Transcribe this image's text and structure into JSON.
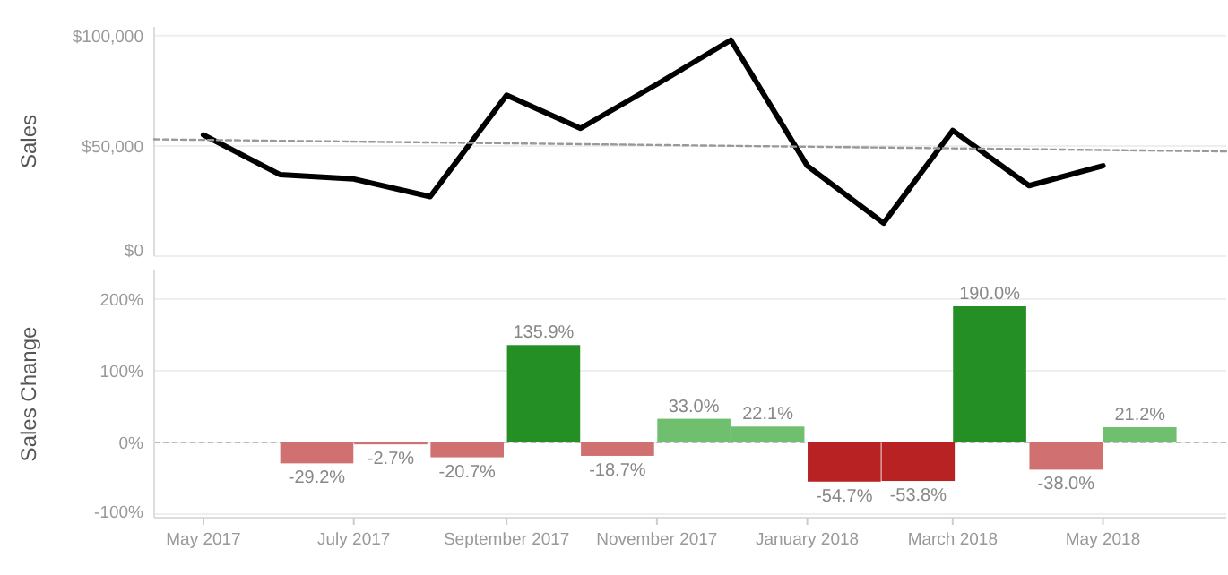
{
  "chart_data": [
    {
      "type": "line",
      "ylabel": "Sales",
      "x": [
        "2017-05-01",
        "2017-06-01",
        "2017-07-01",
        "2017-08-01",
        "2017-09-01",
        "2017-10-01",
        "2017-11-01",
        "2017-12-01",
        "2018-01-01",
        "2018-02-01",
        "2018-03-01",
        "2018-04-01",
        "2018-05-01"
      ],
      "series": [
        {
          "color": "#000000",
          "values": [
            55000,
            37000,
            35000,
            27000,
            73000,
            58000,
            78000,
            98000,
            41000,
            15000,
            57000,
            32000,
            41000
          ]
        },
        {
          "type": "line",
          "x": [
            "2017-04-11",
            "2018-06-20"
          ],
          "values": [
            53000,
            47500
          ],
          "color": "#999999",
          "line_style": "dashed"
        }
      ],
      "xlim": [
        "2017-04-11",
        "2018-06-20"
      ],
      "ylim": [
        0,
        104000
      ],
      "yticks": [
        {
          "value": 0,
          "label": "$0"
        },
        {
          "value": 50000,
          "label": "$50,000"
        },
        {
          "value": 100000,
          "label": "$100,000"
        }
      ],
      "grid": "y",
      "tick_labels": "y"
    },
    {
      "type": "bar",
      "ylabel": "Sales Change",
      "x": [
        "2017-06-16",
        "2017-07-16",
        "2017-08-16",
        "2017-09-16",
        "2017-10-16",
        "2017-11-16",
        "2017-12-16",
        "2018-01-16",
        "2018-02-15",
        "2018-03-16",
        "2018-04-16",
        "2018-05-16"
      ],
      "values": [
        -29.2,
        -2.7,
        -20.7,
        135.9,
        -18.7,
        33.0,
        22.1,
        -54.7,
        -53.8,
        190.0,
        -38.0,
        21.2
      ],
      "colors": [
        "#d07070",
        "#d07070",
        "#d07070",
        "#248f24",
        "#d07070",
        "#6fbf6f",
        "#6fbf6f",
        "#b82222",
        "#b82222",
        "#248f24",
        "#d07070",
        "#6fbf6f"
      ],
      "value_labels": [
        "-29.2%",
        "-2.7%",
        "-20.7%",
        "135.9%",
        "-18.7%",
        "33.0%",
        "22.1%",
        "-54.7%",
        "-53.8%",
        "190.0%",
        "-38.0%",
        "21.2%"
      ],
      "ref_lines": [
        {
          "axis": "y",
          "value": 0,
          "color": "#bbbbbb",
          "line_style": "dashed"
        }
      ],
      "xlim": [
        "2017-04-11",
        "2018-06-20"
      ],
      "ylim": [
        -105,
        240
      ],
      "yticks": [
        {
          "value": -100,
          "label": "-100%"
        },
        {
          "value": 0,
          "label": "0%"
        },
        {
          "value": 100,
          "label": "100%"
        },
        {
          "value": 200,
          "label": "200%"
        }
      ],
      "xticks": [
        {
          "value": "2017-05-01",
          "label": "May 2017"
        },
        {
          "value": "2017-07-01",
          "label": "July 2017"
        },
        {
          "value": "2017-09-01",
          "label": "September 2017"
        },
        {
          "value": "2017-11-01",
          "label": "November 2017"
        },
        {
          "value": "2018-01-01",
          "label": "January 2018"
        },
        {
          "value": "2018-03-01",
          "label": "March 2018"
        },
        {
          "value": "2018-05-01",
          "label": "May 2018"
        }
      ],
      "grid": "y"
    }
  ]
}
